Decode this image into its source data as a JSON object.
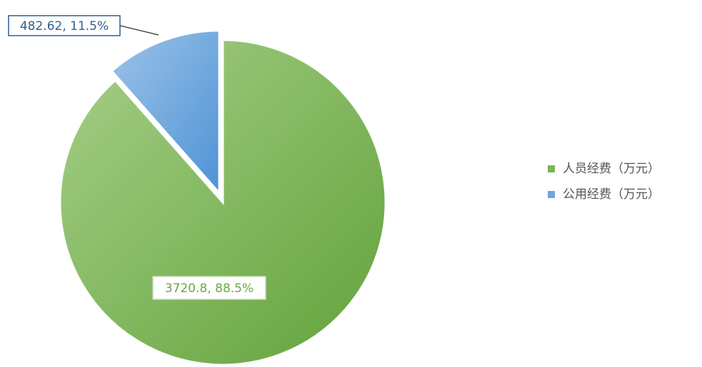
{
  "chart_data": {
    "type": "pie",
    "categories": [
      "人员经费（万元）",
      "公用经费（万元）"
    ],
    "values": [
      3720.8,
      482.62
    ],
    "value_labels": [
      "3720.8, 88.5%",
      "482.62, 11.5%"
    ],
    "colors": [
      "#7cb555",
      "#6fa6dd"
    ],
    "exploded": [
      false,
      true
    ],
    "legend": "right"
  }
}
